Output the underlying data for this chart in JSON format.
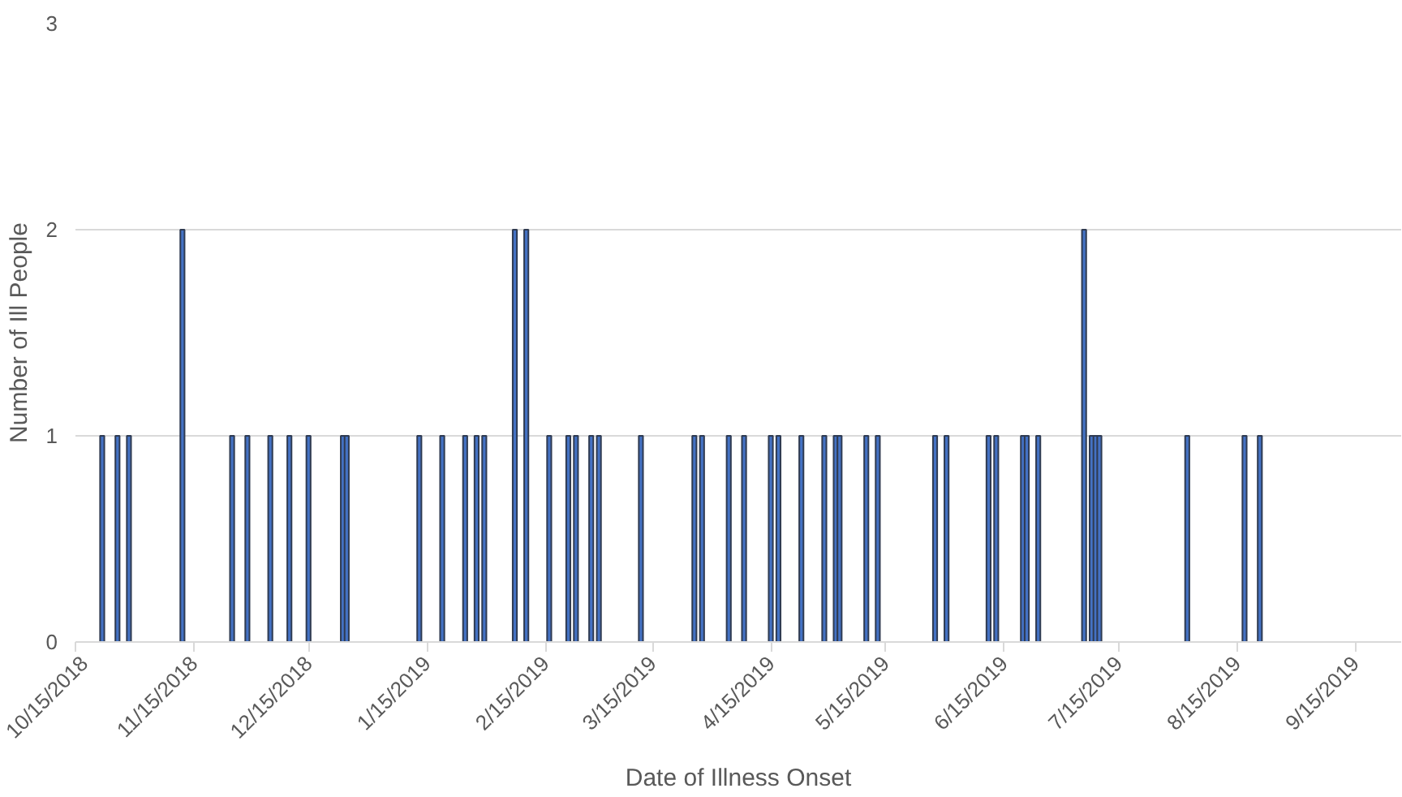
{
  "chart_data": {
    "type": "bar",
    "xlabel": "Date of Illness Onset",
    "ylabel": "Number of Ill People",
    "x": [
      "2018-10-22",
      "2018-10-26",
      "2018-10-29",
      "2018-11-12",
      "2018-11-25",
      "2018-11-29",
      "2018-12-05",
      "2018-12-10",
      "2018-12-15",
      "2018-12-24",
      "2018-12-25",
      "2019-01-13",
      "2019-01-19",
      "2019-01-25",
      "2019-01-28",
      "2019-01-30",
      "2019-02-07",
      "2019-02-10",
      "2019-02-16",
      "2019-02-21",
      "2019-02-23",
      "2019-02-27",
      "2019-03-01",
      "2019-03-12",
      "2019-03-26",
      "2019-03-28",
      "2019-04-04",
      "2019-04-08",
      "2019-04-15",
      "2019-04-17",
      "2019-04-23",
      "2019-04-29",
      "2019-05-02",
      "2019-05-03",
      "2019-05-10",
      "2019-05-13",
      "2019-05-28",
      "2019-05-31",
      "2019-06-11",
      "2019-06-13",
      "2019-06-20",
      "2019-06-21",
      "2019-06-24",
      "2019-07-06",
      "2019-07-08",
      "2019-07-09",
      "2019-07-10",
      "2019-08-02",
      "2019-08-17",
      "2019-08-21"
    ],
    "values": [
      1,
      1,
      1,
      2,
      1,
      1,
      1,
      1,
      1,
      1,
      1,
      1,
      1,
      1,
      1,
      1,
      2,
      2,
      1,
      1,
      1,
      1,
      1,
      1,
      1,
      1,
      1,
      1,
      1,
      1,
      1,
      1,
      1,
      1,
      1,
      1,
      1,
      1,
      1,
      1,
      1,
      1,
      1,
      2,
      1,
      1,
      1,
      1,
      1,
      1
    ],
    "color": "#4472c4",
    "xlim": [
      "2018-10-15",
      "2019-09-27"
    ],
    "xticks": [
      {
        "value": "2018-10-15",
        "label": "10/15/2018"
      },
      {
        "value": "2018-11-15",
        "label": "11/15/2018"
      },
      {
        "value": "2018-12-15",
        "label": "12/15/2018"
      },
      {
        "value": "2019-01-15",
        "label": "1/15/2019"
      },
      {
        "value": "2019-02-15",
        "label": "2/15/2019"
      },
      {
        "value": "2019-03-15",
        "label": "3/15/2019"
      },
      {
        "value": "2019-04-15",
        "label": "4/15/2019"
      },
      {
        "value": "2019-05-15",
        "label": "5/15/2019"
      },
      {
        "value": "2019-06-15",
        "label": "6/15/2019"
      },
      {
        "value": "2019-07-15",
        "label": "7/15/2019"
      },
      {
        "value": "2019-08-15",
        "label": "8/15/2019"
      },
      {
        "value": "2019-09-15",
        "label": "9/15/2019"
      }
    ],
    "ylim": [
      0,
      3
    ],
    "yticks": [
      0,
      1,
      2,
      3
    ],
    "grid": "y"
  }
}
